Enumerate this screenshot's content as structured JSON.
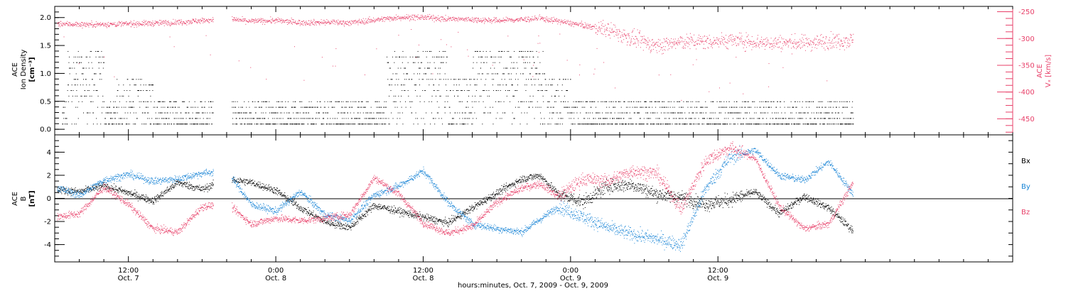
{
  "chart_data": [
    {
      "type": "scatter",
      "panel": "ion-density-velocity",
      "ylabel_left": [
        "ACE",
        "Ion Density",
        "[cm⁻³]"
      ],
      "ylabel_right": [
        "ACE",
        "Vₓ [km/s]"
      ],
      "ylim_left": [
        -0.1,
        2.2
      ],
      "ylim_right": [
        -480,
        -240
      ],
      "y_ticks_left": [
        "0.0",
        "0.5",
        "1.0",
        "1.5",
        "2.0"
      ],
      "y_ticks_right": [
        "-250",
        "-300",
        "-350",
        "-400",
        "-450"
      ],
      "gap_hours": [
        18.9,
        20.4
      ],
      "series": [
        {
          "color": "#000000",
          "axis": "left",
          "description": "ion density",
          "levels": [
            0.1,
            0.2,
            0.3,
            0.4,
            0.5,
            0.6,
            0.7,
            0.8,
            0.9,
            1.0,
            1.1,
            1.2,
            1.3,
            1.4,
            1.5
          ]
        },
        {
          "color": "#e8416a",
          "axis": "right",
          "description": "Vx",
          "x": [
            2,
            4,
            6,
            8,
            10,
            12,
            14,
            16,
            18,
            20,
            22,
            24,
            26,
            28,
            30,
            32,
            34,
            36,
            38,
            40,
            42,
            44,
            45.5,
            47,
            49,
            51,
            53,
            55,
            57,
            59,
            61,
            63,
            65,
            67,
            69,
            71
          ],
          "y": [
            -275,
            -272,
            -272,
            -273,
            -273,
            -272,
            -271,
            -269,
            -266,
            -263,
            -267,
            -266,
            -270,
            -269,
            -270,
            -265,
            -260,
            -260,
            -263,
            -264,
            -266,
            -264,
            -262,
            -267,
            -275,
            -283,
            -300,
            -313,
            -306,
            -305,
            -303,
            -306,
            -308,
            -308,
            -304,
            -303
          ]
        }
      ]
    },
    {
      "type": "scatter",
      "panel": "magnetic-field",
      "ylabel": [
        "ACE",
        "B",
        "[nT]"
      ],
      "ylim": [
        -5.5,
        5.5
      ],
      "y_ticks": [
        "4",
        "2",
        "0",
        "-2",
        "-4"
      ],
      "zero_line": true,
      "legend": [
        {
          "label": "Bₓ",
          "color": "#000000"
        },
        {
          "label": "Bᵧ",
          "color": "#1a85d6"
        },
        {
          "label": "B_z",
          "color": "#e8416a"
        }
      ],
      "legend_display": [
        "Bx",
        "By",
        "Bz"
      ],
      "series": [
        {
          "color": "#000000",
          "x": [
            2,
            4,
            6,
            8,
            10,
            12,
            14,
            16,
            18,
            20,
            22,
            24,
            26,
            28,
            30,
            32,
            34,
            36,
            38,
            40,
            42,
            44,
            45.5,
            47,
            49,
            51,
            53,
            55,
            57,
            59,
            61,
            63,
            65,
            67,
            69,
            71
          ],
          "y": [
            -1.5,
            1.0,
            0.8,
            0.6,
            1.1,
            0.5,
            -0.2,
            1.4,
            0.8,
            1.7,
            1.4,
            0.7,
            -0.8,
            -2.0,
            -2.5,
            -0.6,
            -1.1,
            -1.6,
            -2.1,
            -0.8,
            0.5,
            1.7,
            2.0,
            0.4,
            -0.3,
            1.1,
            1.2,
            0.4,
            0.1,
            -0.5,
            -0.1,
            0.6,
            -1.3,
            0.2,
            -0.8,
            -2.8
          ]
        },
        {
          "color": "#1a85d6",
          "x": [
            2,
            4,
            6,
            8,
            10,
            12,
            14,
            16,
            18,
            20,
            22,
            24,
            26,
            28,
            30,
            32,
            34,
            36,
            38,
            40,
            42,
            44,
            45.5,
            47,
            49,
            51,
            53,
            55,
            57,
            59,
            61,
            63,
            65,
            67,
            69,
            71
          ],
          "y": [
            -3.0,
            -2.3,
            1.0,
            0.3,
            1.6,
            2.1,
            1.5,
            1.7,
            2.2,
            2.4,
            -0.5,
            -1.1,
            0.6,
            -1.4,
            -1.9,
            0.3,
            1.1,
            2.4,
            -0.3,
            -2.2,
            -2.6,
            -2.9,
            -1.8,
            -0.7,
            -1.6,
            -2.5,
            -3.1,
            -3.5,
            -4.0,
            0.9,
            3.6,
            4.2,
            2.0,
            1.6,
            3.2,
            0.4
          ]
        },
        {
          "color": "#e8416a",
          "x": [
            2,
            4,
            6,
            8,
            10,
            12,
            14,
            16,
            18,
            20,
            22,
            24,
            26,
            28,
            30,
            32,
            34,
            36,
            38,
            40,
            42,
            44,
            45.5,
            47,
            49,
            51,
            53,
            55,
            57,
            59,
            61,
            63,
            65,
            67,
            69,
            71
          ],
          "y": [
            2.8,
            2.2,
            -1.6,
            -1.3,
            1.0,
            -0.5,
            -2.6,
            -2.9,
            -0.7,
            -0.4,
            -2.2,
            -1.7,
            -1.9,
            -1.7,
            -1.4,
            1.8,
            0.4,
            -2.1,
            -3.0,
            -2.4,
            -0.3,
            0.9,
            1.3,
            0.2,
            1.7,
            1.5,
            2.4,
            2.2,
            -0.9,
            3.3,
            4.4,
            3.5,
            -0.7,
            -2.6,
            -2.2,
            1.4
          ]
        }
      ]
    }
  ],
  "x_axis": {
    "xlim_hours": [
      6,
      84
    ],
    "ticks": [
      {
        "hour": 12,
        "label": "12:00",
        "date": "Oct. 7"
      },
      {
        "hour": 24,
        "label": "0:00",
        "date": "Oct. 8"
      },
      {
        "hour": 36,
        "label": "12:00",
        "date": "Oct. 8"
      },
      {
        "hour": 48,
        "label": "0:00",
        "date": "Oct. 9"
      },
      {
        "hour": 60,
        "label": "12:00",
        "date": "Oct. 9"
      }
    ],
    "title": "hours:minutes, Oct.  7, 2009 - Oct.  9, 2009"
  },
  "note": "x positions are hours after Oct 7 00:00 UTC"
}
